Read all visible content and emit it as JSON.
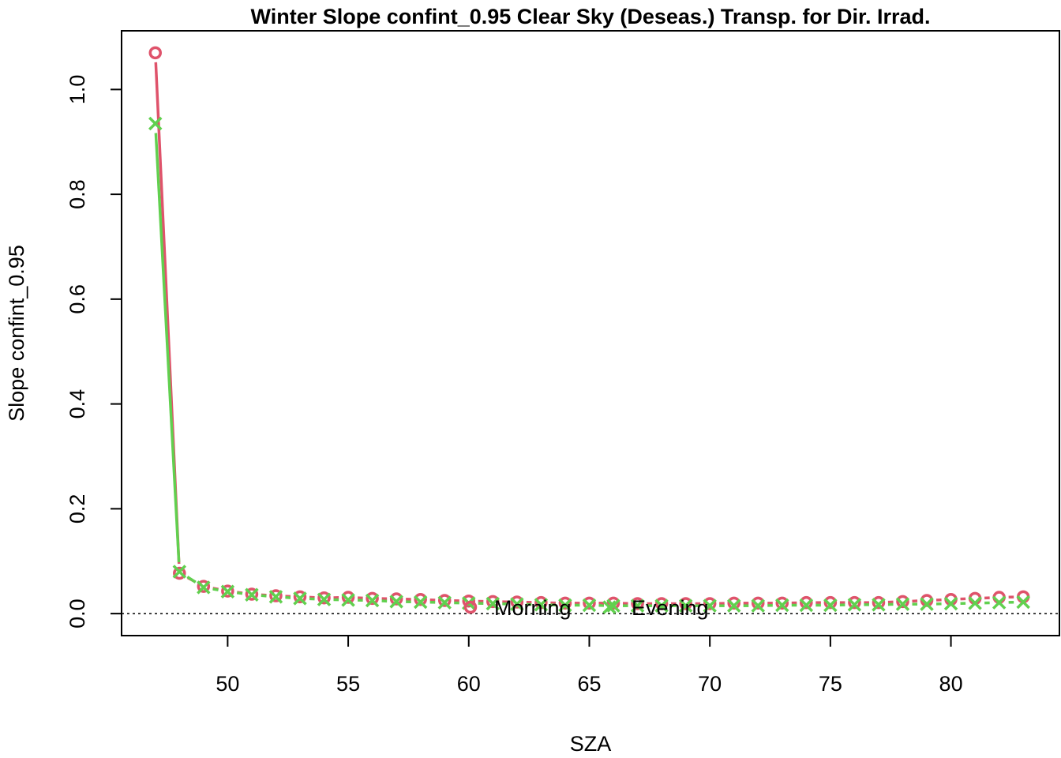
{
  "chart_data": {
    "type": "line",
    "title": "Winter Slope confint_0.95 Clear Sky (Deseas.) Transp. for Dir. Irrad.",
    "xlabel": "SZA",
    "ylabel": "Slope confint_0.95",
    "xlim": [
      45.6,
      84.5
    ],
    "ylim": [
      -0.042,
      1.112
    ],
    "x_ticks": [
      50,
      55,
      60,
      65,
      70,
      75,
      80
    ],
    "y_ticks": [
      0.0,
      0.2,
      0.4,
      0.6,
      0.8,
      1.0
    ],
    "x_tick_labels": [
      "50",
      "55",
      "60",
      "65",
      "70",
      "75",
      "80"
    ],
    "y_tick_labels": [
      "0.0",
      "0.2",
      "0.4",
      "0.6",
      "0.8",
      "1.0"
    ],
    "reference_line": {
      "y": 0,
      "style": "dotted"
    },
    "legend_position": "bottom-center",
    "grid": false,
    "x": [
      47,
      48,
      49,
      50,
      51,
      52,
      53,
      54,
      55,
      56,
      57,
      58,
      59,
      60,
      61,
      62,
      63,
      64,
      65,
      66,
      67,
      68,
      69,
      70,
      71,
      72,
      73,
      74,
      75,
      76,
      77,
      78,
      79,
      80,
      81,
      82,
      83
    ],
    "series": [
      {
        "name": "Morning",
        "color": "#DF536B",
        "marker": "circle",
        "values": [
          1.07,
          0.077,
          0.052,
          0.043,
          0.037,
          0.034,
          0.032,
          0.03,
          0.031,
          0.029,
          0.028,
          0.027,
          0.025,
          0.024,
          0.023,
          0.022,
          0.021,
          0.02,
          0.02,
          0.02,
          0.019,
          0.019,
          0.019,
          0.019,
          0.02,
          0.02,
          0.02,
          0.021,
          0.021,
          0.021,
          0.021,
          0.023,
          0.025,
          0.027,
          0.029,
          0.031,
          0.032
        ]
      },
      {
        "name": "Evening",
        "color": "#61D04F",
        "marker": "cross",
        "values": [
          0.935,
          0.08,
          0.05,
          0.042,
          0.036,
          0.032,
          0.029,
          0.027,
          0.026,
          0.025,
          0.023,
          0.022,
          0.021,
          0.02,
          0.019,
          0.018,
          0.017,
          0.016,
          0.016,
          0.015,
          0.015,
          0.015,
          0.015,
          0.015,
          0.015,
          0.015,
          0.016,
          0.016,
          0.016,
          0.017,
          0.017,
          0.018,
          0.018,
          0.019,
          0.02,
          0.021,
          0.022
        ]
      }
    ]
  }
}
